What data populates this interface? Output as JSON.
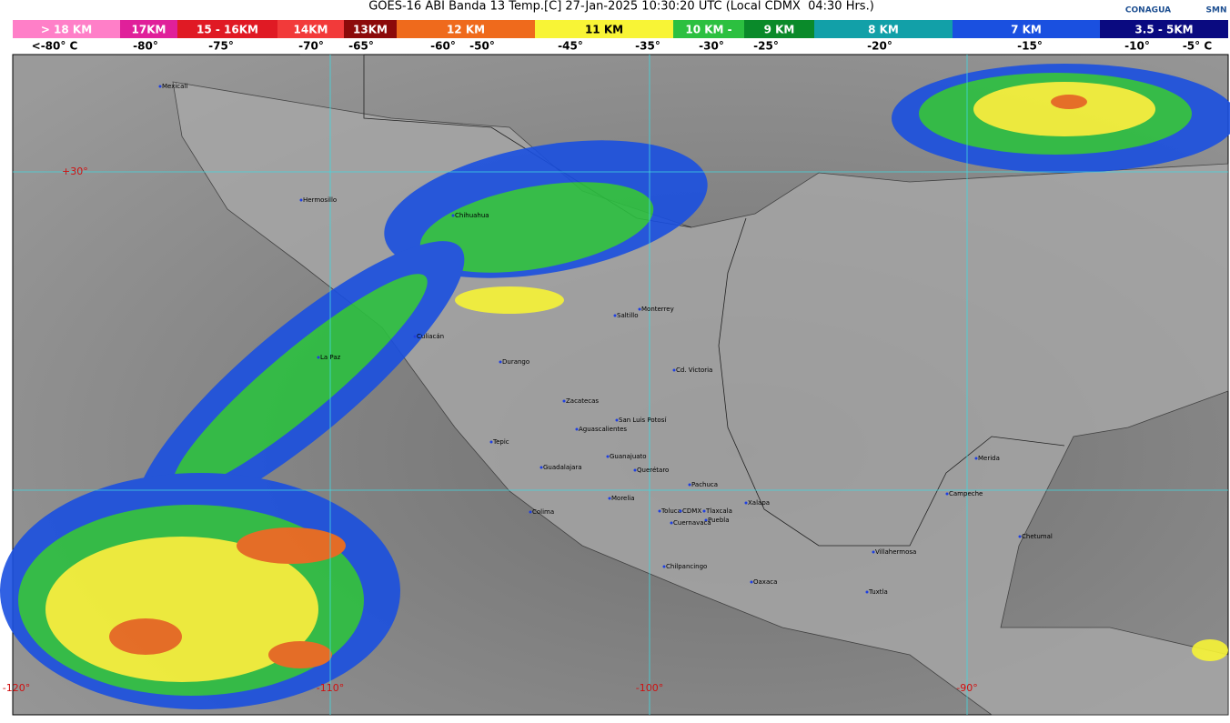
{
  "header": {
    "title": "GOES-16 ABI Banda 13 Temp.[C] 27-Jan-2025 10:30:20 UTC (Local CDMX  04:30 Hrs.)",
    "logos": [
      "CONAGUA",
      "SMN"
    ]
  },
  "legend": {
    "segments": [
      {
        "label": "> 18 KM",
        "color": "#ff7fc8"
      },
      {
        "label": "17KM",
        "color": "#e0209a"
      },
      {
        "label": "15 - 16KM",
        "color": "#e01a24"
      },
      {
        "label": "14KM",
        "color": "#f23a3a"
      },
      {
        "label": "13KM",
        "color": "#8c0a0a"
      },
      {
        "label": "12 KM",
        "color": "#ef6a1c"
      },
      {
        "label": "11 KM",
        "color": "#f8f436"
      },
      {
        "label": "10 KM -",
        "color": "#2cc040"
      },
      {
        "label": "9 KM",
        "color": "#0a8a2a"
      },
      {
        "label": "8 KM",
        "color": "#12a0a8"
      },
      {
        "label": "7 KM",
        "color": "#1a50e0"
      },
      {
        "label": "3.5 - 5KM",
        "color": "#0a0a80"
      }
    ],
    "temperatures": [
      "<-80° C",
      "-80°",
      "-75°",
      "-70°",
      "-65°",
      "-60°",
      "-50°",
      "-45°",
      "-35°",
      "-30°",
      "-25°",
      "-20°",
      "-15°",
      "-10°",
      "-5° C"
    ]
  },
  "map": {
    "grid_labels": [
      "+30°",
      "-120°",
      "-110°",
      "-100°",
      "-90°"
    ],
    "cities": [
      "Mexicali",
      "Hermosillo",
      "Chihuahua",
      "Culiacán",
      "La Paz",
      "Durango",
      "Saltillo",
      "Monterrey",
      "Cd. Victoria",
      "Zacatecas",
      "San Luis Potosí",
      "Aguascalientes",
      "Tepic",
      "Guanajuato",
      "Guadalajara",
      "Querétaro",
      "Pachuca",
      "Morelia",
      "Xalapa",
      "Colima",
      "Toluca",
      "CDMX",
      "Tlaxcala",
      "Puebla",
      "Cuernavaca",
      "Chilpancingo",
      "Oaxaca",
      "Villahermosa",
      "Tuxtla",
      "Merida",
      "Campeche",
      "Chetumal"
    ]
  }
}
